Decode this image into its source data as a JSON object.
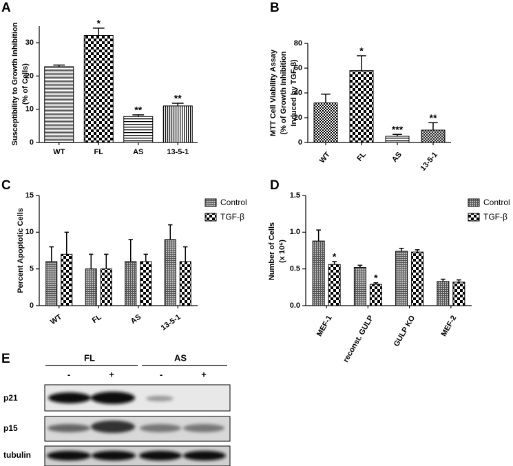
{
  "chart_data": [
    {
      "type": "bar",
      "panel": "A",
      "ylabel": [
        "Susceptibility to Growth Inhibition",
        "(% of Cells)"
      ],
      "categories": [
        "WT",
        "FL",
        "AS",
        "13-5-1"
      ],
      "values": [
        22.8,
        32.2,
        7.8,
        11.0
      ],
      "errors": [
        0.5,
        2.2,
        0.5,
        0.8
      ],
      "significance": [
        null,
        "*",
        "**",
        "**"
      ],
      "patterns": [
        "hlines-dense",
        "checker",
        "hlines",
        "vlines"
      ],
      "ylim": [
        0,
        35
      ],
      "yticks": [
        0,
        10,
        20,
        30
      ]
    },
    {
      "type": "bar",
      "panel": "B",
      "ylabel": [
        "MTT Cell Viability Assay",
        "(% of Growth Inhibition",
        "Induced by TGF-β)"
      ],
      "categories": [
        "WT",
        "FL",
        "AS",
        "13-5-1"
      ],
      "values": [
        32,
        58,
        5,
        10
      ],
      "errors": [
        7,
        12,
        1.5,
        6
      ],
      "significance": [
        null,
        "*",
        "***",
        "**"
      ],
      "patterns": [
        "checker-fine",
        "checker",
        "hlines",
        "hatch"
      ],
      "ylim": [
        0,
        80
      ],
      "yticks": [
        0,
        20,
        40,
        60,
        80
      ]
    },
    {
      "type": "bar",
      "panel": "C",
      "ylabel": [
        "Percent  Apoptotic Cells"
      ],
      "categories": [
        "WT",
        "FL",
        "AS",
        "13-5-1"
      ],
      "series": [
        {
          "name": "Control",
          "pattern": "grid-fine",
          "values": [
            6,
            5,
            6,
            9
          ],
          "errors": [
            2,
            2,
            3,
            2
          ]
        },
        {
          "name": "TGF-β",
          "pattern": "checker",
          "values": [
            7,
            5,
            6,
            6
          ],
          "errors": [
            3,
            2,
            1,
            2
          ]
        }
      ],
      "ylim": [
        0,
        15
      ],
      "yticks": [
        0,
        5,
        10,
        15
      ]
    },
    {
      "type": "bar",
      "panel": "D",
      "ylabel": [
        "Number of  Cells",
        "(x 10⁶)"
      ],
      "categories": [
        "MEF-1",
        "reconst. GULP",
        "GULP KO",
        "MEF-2"
      ],
      "series": [
        {
          "name": "Control",
          "pattern": "grid-fine",
          "values": [
            0.88,
            0.52,
            0.74,
            0.33
          ],
          "errors": [
            0.15,
            0.03,
            0.04,
            0.03
          ],
          "significance": [
            null,
            null,
            null,
            null
          ]
        },
        {
          "name": "TGF-β",
          "pattern": "checker",
          "values": [
            0.56,
            0.29,
            0.73,
            0.32
          ],
          "errors": [
            0.04,
            0.02,
            0.03,
            0.03
          ],
          "significance": [
            "*",
            "*",
            null,
            null
          ]
        }
      ],
      "ylim": [
        0,
        1.5
      ],
      "yticks": [
        {
          "value": 0,
          "label": "0.0"
        },
        {
          "value": 0.5,
          "label": "0.5"
        },
        {
          "value": 1,
          "label": "1.0"
        },
        {
          "value": 1.5,
          "label": "1.5"
        }
      ]
    }
  ],
  "blot": {
    "panel": "E",
    "groups": [
      "FL",
      "AS"
    ],
    "lanes": [
      "-",
      "+",
      "-",
      "+"
    ],
    "rows": [
      "p21",
      "p15",
      "tubulin"
    ]
  }
}
